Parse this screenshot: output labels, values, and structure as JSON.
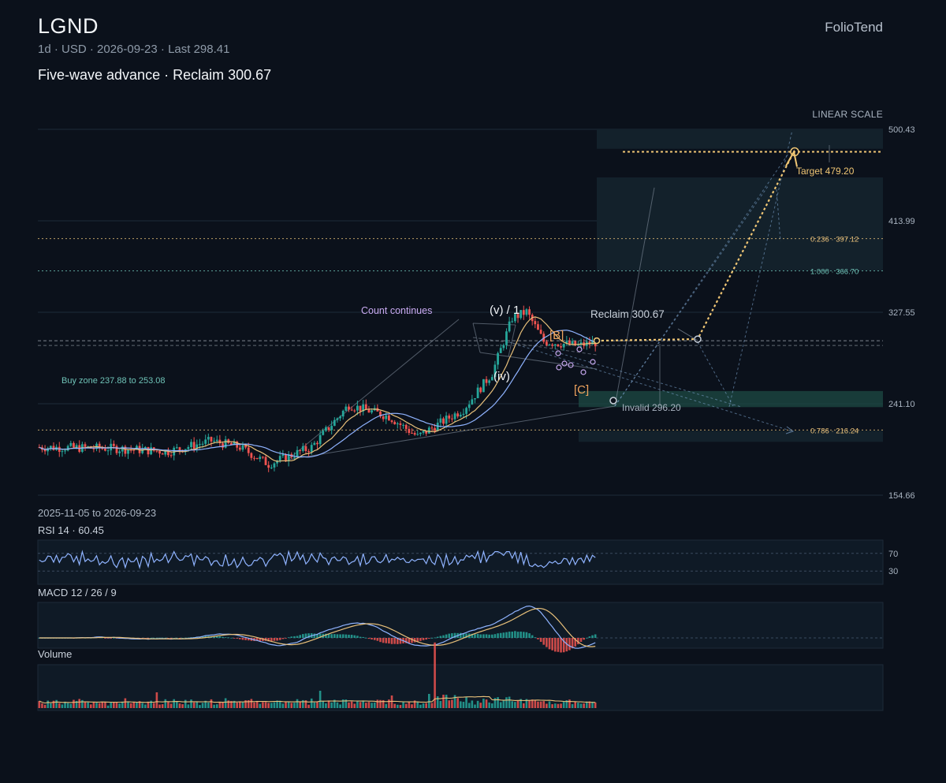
{
  "header": {
    "ticker": "LGND",
    "meta": "1d · USD · 2026-09-23 · Last 298.41",
    "subtitle": "Five-wave advance · Reclaim 300.67",
    "brand": "FolioTend",
    "scale_label": "LINEAR SCALE",
    "range": "2025-11-05 to 2026-09-23"
  },
  "colors": {
    "background": "#0b111b",
    "up": "#26a69a",
    "down": "#ef5350",
    "accent": "#f0c674",
    "ma_fast": "#e8c07a",
    "ma_slow": "#8fb3ff",
    "annot": "#c8a9f0"
  },
  "chart_data": [
    {
      "id": "price",
      "type": "candlestick",
      "ylim": [
        154.66,
        500.43
      ],
      "y_ticks": [
        "500.43",
        "413.99",
        "327.55",
        "241.10",
        "154.66"
      ],
      "y_tick_values": [
        500.43,
        413.99,
        327.55,
        241.1,
        154.66
      ],
      "x_range": [
        "2025-11-05",
        "2026-09-23"
      ],
      "last": 298.41,
      "generator": {
        "bars": 195,
        "seed": 7,
        "anchors": [
          [
            0,
            200
          ],
          [
            25,
            199
          ],
          [
            45,
            196
          ],
          [
            60,
            206
          ],
          [
            70,
            200
          ],
          [
            80,
            184
          ],
          [
            95,
            200
          ],
          [
            108,
            240
          ],
          [
            122,
            229
          ],
          [
            132,
            210
          ],
          [
            148,
            236
          ],
          [
            158,
            270
          ],
          [
            165,
            322
          ],
          [
            170,
            328
          ],
          [
            176,
            300
          ],
          [
            188,
            296
          ],
          [
            194,
            299
          ]
        ]
      },
      "levels": [
        {
          "label": "0.236 · 397.12",
          "value": 397.12,
          "color": "#e8c07a"
        },
        {
          "label": "1.000 · 366.70",
          "value": 366.7,
          "color": "#6fc3b7"
        },
        {
          "label": "0.786 · 216.24",
          "value": 216.24,
          "color": "#e8c07a"
        }
      ],
      "buy_zone": {
        "label": "Buy zone 237.88 to 253.08",
        "low": 237.88,
        "high": 253.08
      },
      "annotations": {
        "count": "Count continues",
        "wave_v": "(v) / 1",
        "wave_iv": "(iv)",
        "wave_B": "[B]",
        "wave_C": "[C]",
        "reclaim": "Reclaim 300.67",
        "reclaim_value": 300.67,
        "invalid": "Invalid 296.20",
        "invalid_value": 296.2,
        "target": "Target 479.20",
        "target_value": 479.2
      }
    },
    {
      "id": "rsi",
      "type": "line",
      "title": "RSI 14 · 60.45",
      "ylim": [
        0,
        100
      ],
      "y_ticks": [
        "70",
        "30"
      ],
      "last": 60.45
    },
    {
      "id": "macd",
      "type": "line",
      "title": "MACD 12 / 26 / 9"
    },
    {
      "id": "volume",
      "type": "bar",
      "title": "Volume"
    }
  ]
}
